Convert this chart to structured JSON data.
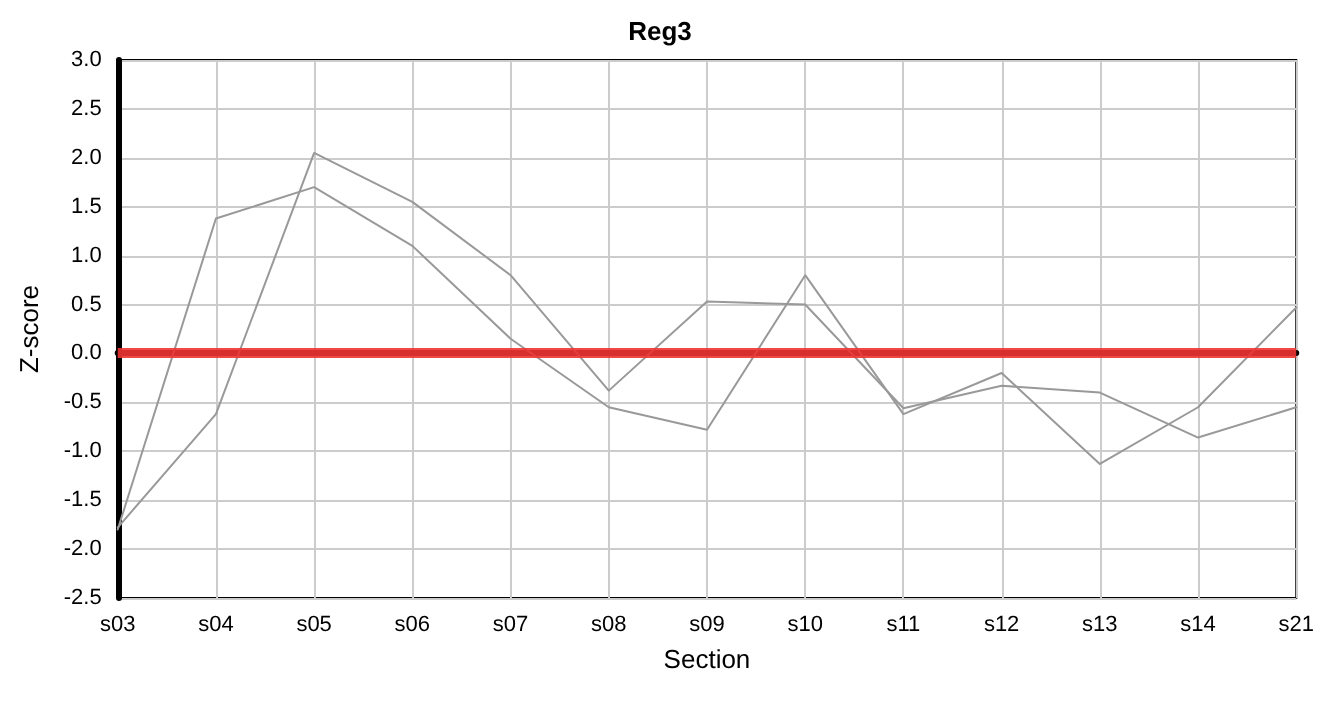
{
  "chart_data": {
    "type": "line",
    "title": "Reg3",
    "xlabel": "Section",
    "ylabel": "Z-score",
    "categories": [
      "s03",
      "s04",
      "s05",
      "s06",
      "s07",
      "s08",
      "s09",
      "s10",
      "s11",
      "s12",
      "s13",
      "s14",
      "s21"
    ],
    "series": [
      {
        "color": "#999999",
        "values": [
          -1.8,
          1.38,
          1.7,
          1.1,
          0.15,
          -0.55,
          -0.78,
          0.8,
          -0.62,
          -0.2,
          -1.13,
          -0.55,
          0.47
        ]
      },
      {
        "color": "#999999",
        "values": [
          -1.78,
          -0.62,
          2.05,
          1.55,
          0.8,
          -0.38,
          0.53,
          0.5,
          -0.56,
          -0.33,
          -0.4,
          -0.86,
          -0.55
        ]
      }
    ],
    "ylim": [
      -2.5,
      3.0
    ],
    "yticks": [
      {
        "value": -2.5,
        "label": "-2.5"
      },
      {
        "value": -2,
        "label": "-2.0"
      },
      {
        "value": -1.5,
        "label": "-1.5"
      },
      {
        "value": -1,
        "label": "-1.0"
      },
      {
        "value": -0.5,
        "label": "-0.5"
      },
      {
        "value": 0,
        "label": "0.0"
      },
      {
        "value": 0.5,
        "label": "0.5"
      },
      {
        "value": 1,
        "label": "1.0"
      },
      {
        "value": 1.5,
        "label": "1.5"
      },
      {
        "value": 2,
        "label": "2.0"
      },
      {
        "value": 2.5,
        "label": "2.5"
      },
      {
        "value": 3,
        "label": "3.0"
      }
    ],
    "ref_lines": [
      {
        "axis": "y",
        "value": 0,
        "color": "#ee3333"
      }
    ],
    "grid": true,
    "marker": "none",
    "line_style": "solid"
  }
}
